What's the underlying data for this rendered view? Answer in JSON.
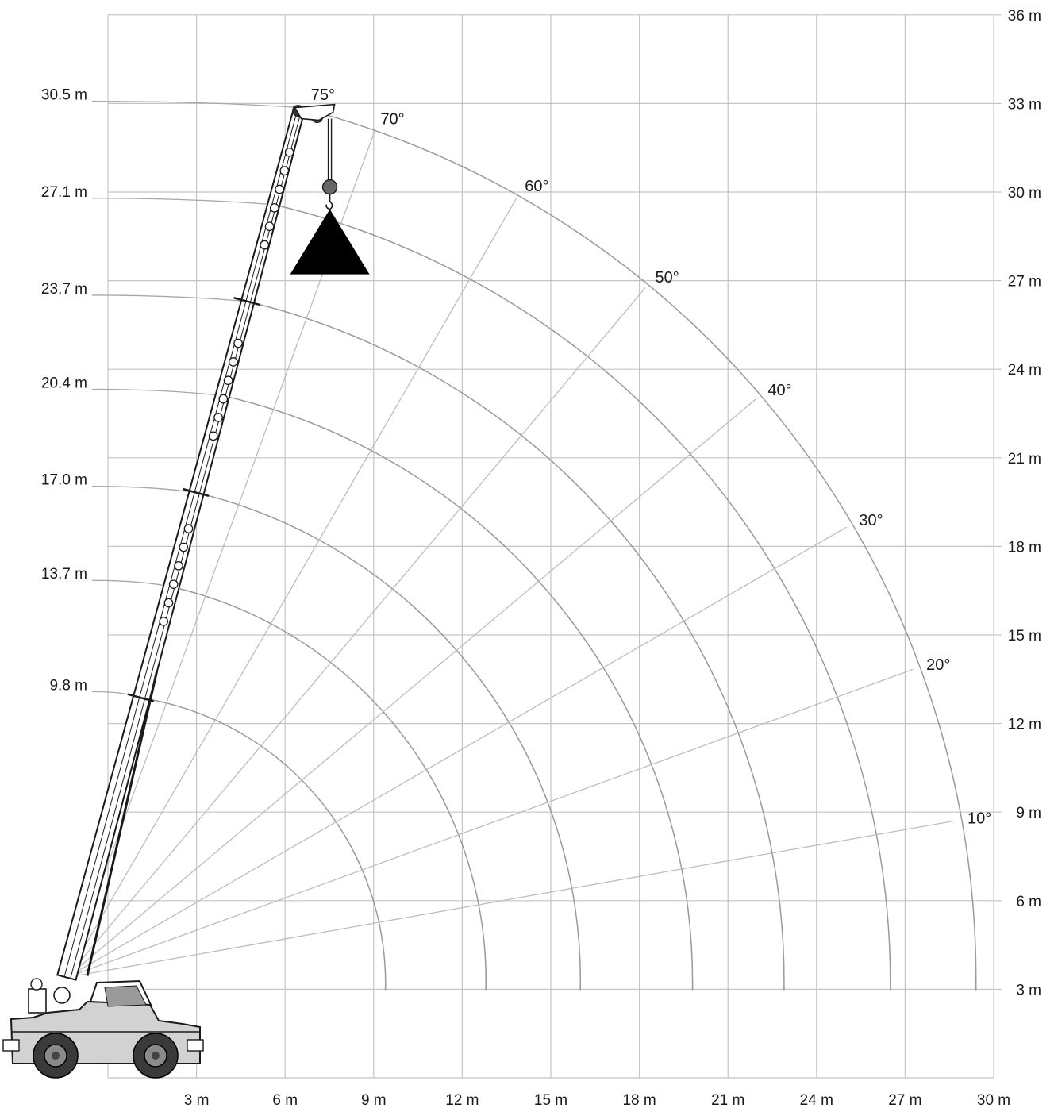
{
  "colors": {
    "grid": "#c4c4c4",
    "arc": "#9a9a9a",
    "ray": "#bdbdbd",
    "leader": "#a8a8a8",
    "boom": "#1a1a1a",
    "load": "#000000",
    "machine_body": "#d2d2d2",
    "tyre": "#3a3a3a"
  },
  "chart_data": {
    "type": "crane-working-range",
    "x_unit": "m",
    "y_unit": "m",
    "xlim": [
      0,
      30
    ],
    "ylim": [
      0,
      36
    ],
    "x_ticks": [
      {
        "v": 3,
        "label": "3 m"
      },
      {
        "v": 6,
        "label": "6 m"
      },
      {
        "v": 9,
        "label": "9 m"
      },
      {
        "v": 12,
        "label": "12 m"
      },
      {
        "v": 15,
        "label": "15 m"
      },
      {
        "v": 18,
        "label": "18 m"
      },
      {
        "v": 21,
        "label": "21 m"
      },
      {
        "v": 24,
        "label": "24 m"
      },
      {
        "v": 27,
        "label": "27 m"
      },
      {
        "v": 30,
        "label": "30 m"
      }
    ],
    "y_ticks": [
      {
        "v": 3,
        "label": "3 m"
      },
      {
        "v": 6,
        "label": "6 m"
      },
      {
        "v": 9,
        "label": "9 m"
      },
      {
        "v": 12,
        "label": "12 m"
      },
      {
        "v": 15,
        "label": "15 m"
      },
      {
        "v": 18,
        "label": "18 m"
      },
      {
        "v": 21,
        "label": "21 m"
      },
      {
        "v": 24,
        "label": "24 m"
      },
      {
        "v": 27,
        "label": "27 m"
      },
      {
        "v": 30,
        "label": "30 m"
      },
      {
        "v": 33,
        "label": "33 m"
      },
      {
        "v": 36,
        "label": "36 m"
      }
    ],
    "boom_pivot": {
      "x": -1.4,
      "y": 3.4
    },
    "boom_lengths": [
      {
        "length": 9.8,
        "label": "9.8 m",
        "end_x": 9.4
      },
      {
        "length": 13.7,
        "label": "13.7 m",
        "end_x": 12.8
      },
      {
        "length": 17.0,
        "label": "17.0 m",
        "end_x": 16.0
      },
      {
        "length": 20.4,
        "label": "20.4 m",
        "end_x": 19.8
      },
      {
        "length": 23.7,
        "label": "23.7 m",
        "end_x": 22.9
      },
      {
        "length": 27.1,
        "label": "27.1 m",
        "end_x": 26.5
      },
      {
        "length": 30.5,
        "label": "30.5 m",
        "end_x": 29.4
      }
    ],
    "boom_angles": [
      {
        "deg": 10,
        "label": "10°"
      },
      {
        "deg": 20,
        "label": "20°"
      },
      {
        "deg": 30,
        "label": "30°"
      },
      {
        "deg": 40,
        "label": "40°"
      },
      {
        "deg": 50,
        "label": "50°"
      },
      {
        "deg": 60,
        "label": "60°"
      },
      {
        "deg": 70,
        "label": "70°"
      },
      {
        "deg": 75,
        "label": "75°"
      }
    ]
  }
}
